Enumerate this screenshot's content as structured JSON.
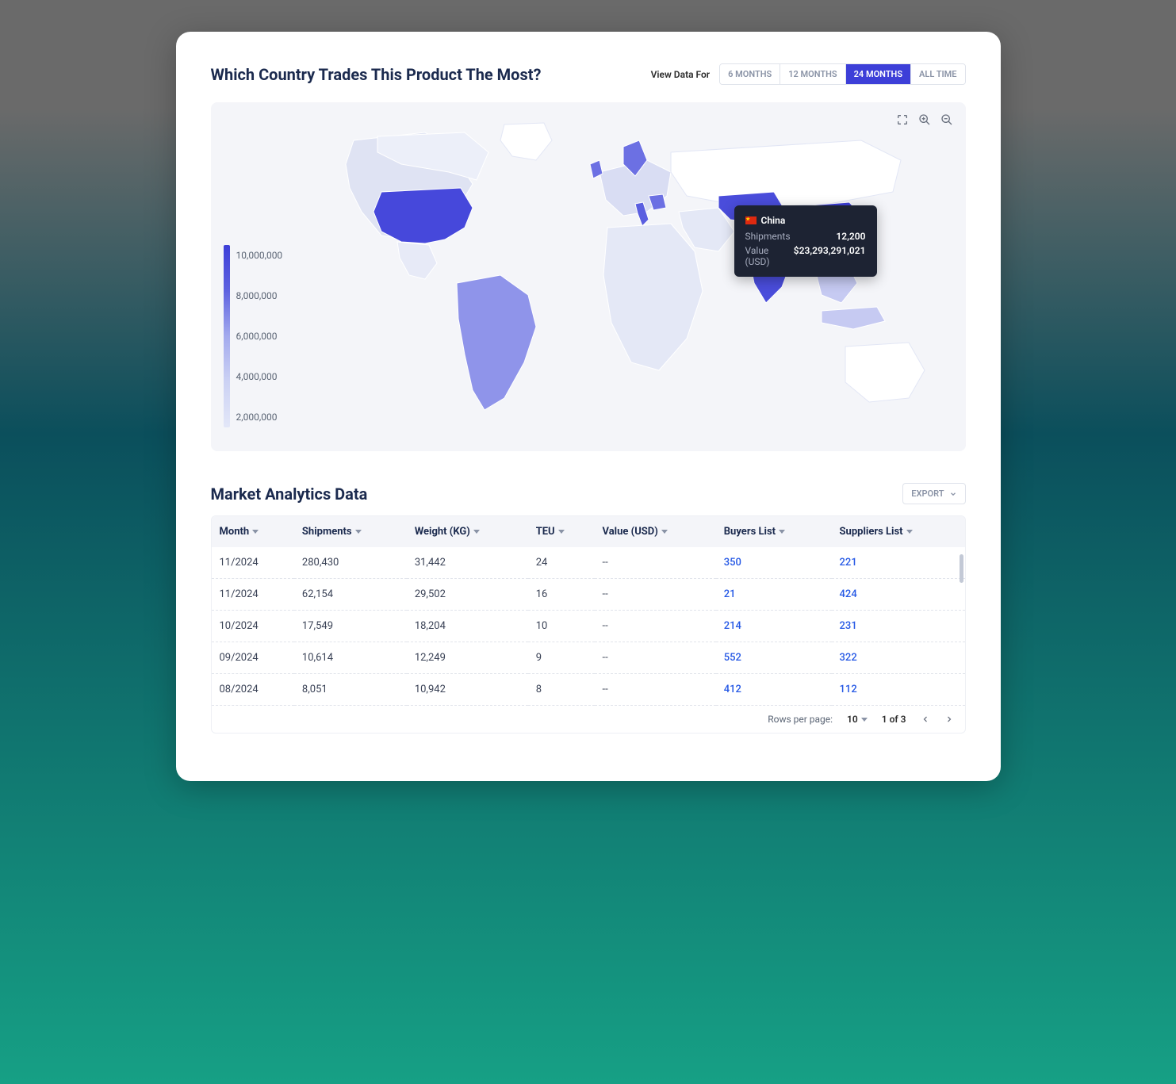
{
  "header": {
    "title": "Which Country Trades This Product The Most?",
    "range_label": "View Data For",
    "ranges": [
      "6 MONTHS",
      "12 MONTHS",
      "24 MONTHS",
      "ALL TIME"
    ],
    "active_range_index": 2
  },
  "map": {
    "background_color": "#f4f5f9",
    "legend_ticks": [
      "10,000,000",
      "8,000,000",
      "6,000,000",
      "4,000,000",
      "2,000,000"
    ],
    "legend_colors": [
      "#3d3fd8",
      "#5e62e0",
      "#a3aaee",
      "#ccd2f4",
      "#e3e7f8"
    ],
    "land_fill_default": "#e2e6f5",
    "land_stroke": "#ffffff",
    "highlighted_countries": {
      "usa": "#4648db",
      "brazil": "#8f94ea",
      "europe_patches": "#6c70e3",
      "india": "#4a4ddb",
      "china": "#3d3fd8",
      "kazakhstan": "#4a4ddb",
      "indonesia": "#c6caf2"
    },
    "tooltip": {
      "country": "China",
      "shipments_label": "Shipments",
      "shipments_value": "12,200",
      "value_label": "Value (USD)",
      "value_value": "$23,293,291,021"
    }
  },
  "analytics": {
    "title": "Market Analytics Data",
    "export_label": "EXPORT",
    "columns": [
      "Month",
      "Shipments",
      "Weight (KG)",
      "TEU",
      "Value (USD)",
      "Buyers List",
      "Suppliers List"
    ],
    "rows": [
      {
        "month": "11/2024",
        "shipments": "280,430",
        "weight": "31,442",
        "teu": "24",
        "value": "--",
        "buyers": "350",
        "suppliers": "221"
      },
      {
        "month": "11/2024",
        "shipments": "62,154",
        "weight": "29,502",
        "teu": "16",
        "value": "--",
        "buyers": "21",
        "suppliers": "424"
      },
      {
        "month": "10/2024",
        "shipments": "17,549",
        "weight": "18,204",
        "teu": "10",
        "value": "--",
        "buyers": "214",
        "suppliers": "231"
      },
      {
        "month": "09/2024",
        "shipments": "10,614",
        "weight": "12,249",
        "teu": "9",
        "value": "--",
        "buyers": "552",
        "suppliers": "322"
      },
      {
        "month": "08/2024",
        "shipments": "8,051",
        "weight": "10,942",
        "teu": "8",
        "value": "--",
        "buyers": "412",
        "suppliers": "112"
      }
    ],
    "pager": {
      "rows_per_page_label": "Rows per page:",
      "rows_per_page_value": "10",
      "page_info": "1 of 3"
    }
  }
}
